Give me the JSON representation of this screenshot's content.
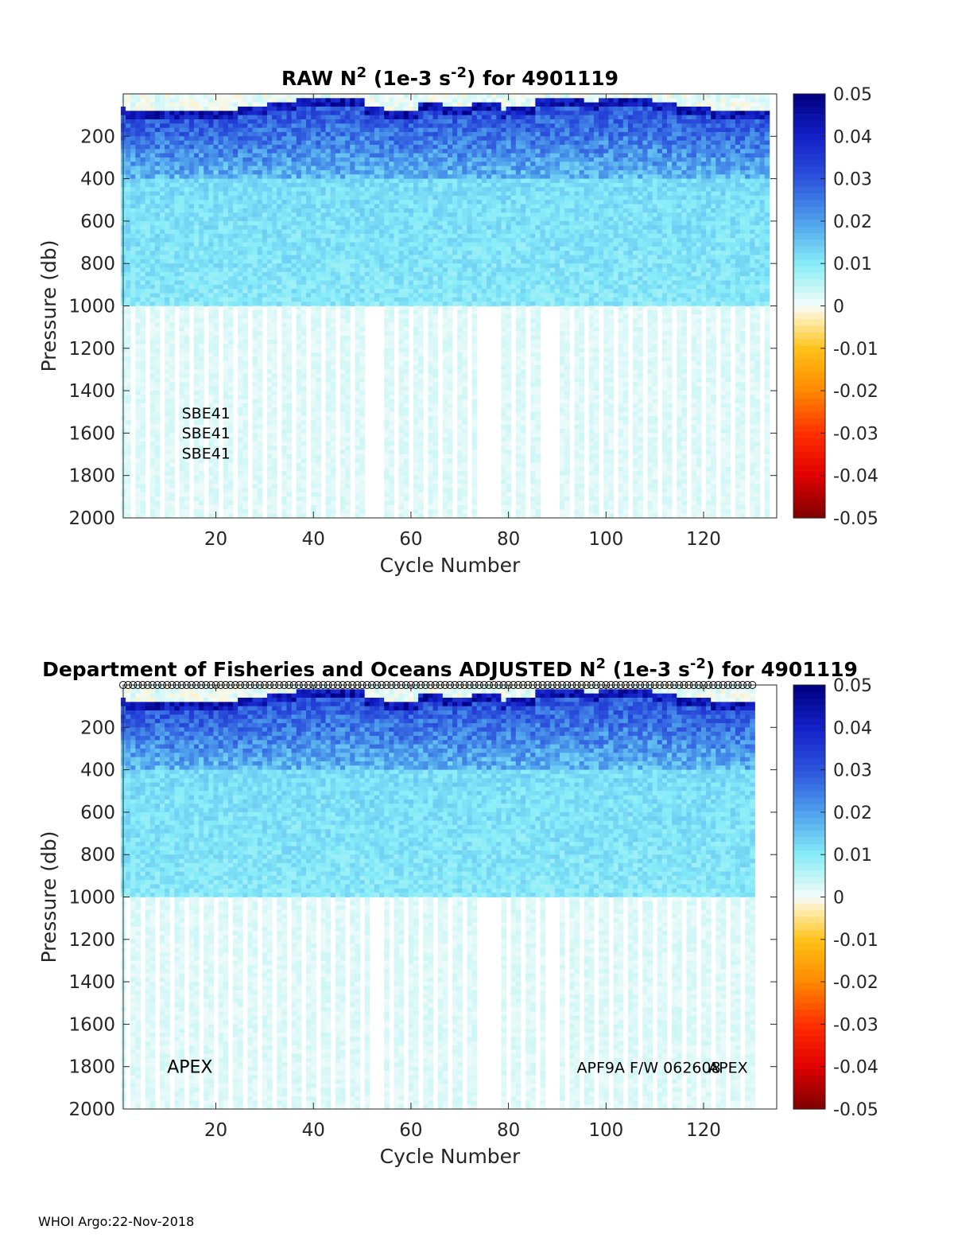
{
  "footer": "WHOI Argo:22-Nov-2018",
  "colormap": {
    "stops": [
      {
        "v": -0.05,
        "color": "#7f0000"
      },
      {
        "v": -0.04,
        "color": "#e00000"
      },
      {
        "v": -0.03,
        "color": "#ff3000"
      },
      {
        "v": -0.02,
        "color": "#ff8a00"
      },
      {
        "v": -0.01,
        "color": "#ffc21a"
      },
      {
        "v": -0.003,
        "color": "#ffeeb4"
      },
      {
        "v": 0.0,
        "color": "#f4fbfb"
      },
      {
        "v": 0.004,
        "color": "#c6f6f4"
      },
      {
        "v": 0.01,
        "color": "#86ecf8"
      },
      {
        "v": 0.02,
        "color": "#4ea0ec"
      },
      {
        "v": 0.03,
        "color": "#2c52dc"
      },
      {
        "v": 0.04,
        "color": "#1420c8"
      },
      {
        "v": 0.05,
        "color": "#00007f"
      }
    ]
  },
  "chart_data": [
    {
      "type": "heatmap",
      "title_parts": [
        "RAW N",
        "2",
        " (1e-3 s",
        "-2",
        ") for 4901119"
      ],
      "xlabel": "Cycle Number",
      "ylabel": "Pressure (db)",
      "xlim": [
        1,
        135
      ],
      "ylim": [
        2000,
        0
      ],
      "xticks": [
        20,
        40,
        60,
        80,
        100,
        120
      ],
      "yticks": [
        200,
        400,
        600,
        800,
        1000,
        1200,
        1400,
        1600,
        1800,
        2000
      ],
      "clim": [
        -0.05,
        0.05
      ],
      "cticks": [
        0.05,
        0.04,
        0.03,
        0.02,
        0.01,
        0,
        -0.01,
        -0.02,
        -0.03,
        -0.04,
        -0.05
      ],
      "annotations": [
        {
          "text": "SBE41",
          "cycle": 13,
          "pressure": 1500
        },
        {
          "text": "SBE41",
          "cycle": 13,
          "pressure": 1595
        },
        {
          "text": "SBE41",
          "cycle": 13,
          "pressure": 1690
        }
      ],
      "last_cycle": 133,
      "show_markers": false
    },
    {
      "type": "heatmap",
      "title_parts": [
        "Department of Fisheries and Oceans  ADJUSTED N",
        "2",
        " (1e-3 s",
        "-2",
        ") for 4901119"
      ],
      "xlabel": "Cycle Number",
      "ylabel": "Pressure (db)",
      "xlim": [
        1,
        135
      ],
      "ylim": [
        2000,
        0
      ],
      "xticks": [
        20,
        40,
        60,
        80,
        100,
        120
      ],
      "yticks": [
        200,
        400,
        600,
        800,
        1000,
        1200,
        1400,
        1600,
        1800,
        2000
      ],
      "clim": [
        -0.05,
        0.05
      ],
      "cticks": [
        0.05,
        0.04,
        0.03,
        0.02,
        0.01,
        0,
        -0.01,
        -0.02,
        -0.03,
        -0.04,
        -0.05
      ],
      "annotations": [
        {
          "text": "APEX",
          "cycle": 10,
          "pressure": 1800,
          "size": "large"
        },
        {
          "text": "APF9A F/W 062608",
          "cycle": 94,
          "pressure": 1800
        },
        {
          "text": "APEX",
          "cycle": 121,
          "pressure": 1800
        }
      ],
      "last_cycle": 130,
      "show_markers": true
    }
  ]
}
